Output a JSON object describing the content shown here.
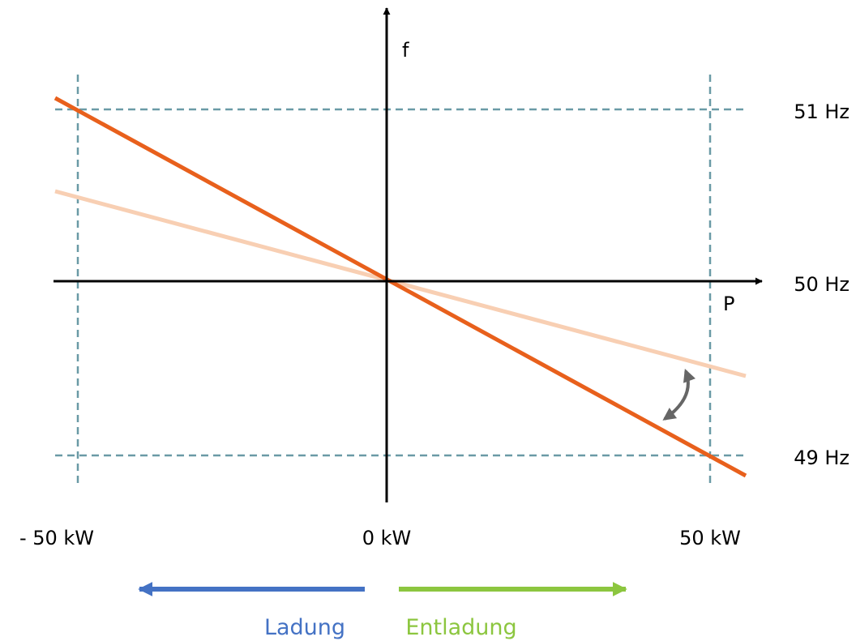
{
  "axes": {
    "x_label": "P",
    "y_label": "f"
  },
  "frequency_labels": {
    "upper": "51 Hz",
    "nominal": "50 Hz",
    "lower": "49 Hz"
  },
  "power_labels": {
    "left": "- 50 kW",
    "center": "0 kW",
    "right": "50 kW"
  },
  "direction_labels": {
    "charge": "Ladung",
    "discharge": "Entladung"
  },
  "colors": {
    "axis": "#000000",
    "gridline": "#6a9aa6",
    "steep_droop": "#e8601c",
    "flat_droop": "#f8cfb3",
    "adjust_arrow": "#666666",
    "charge": "#4472c4",
    "discharge": "#8cc63f"
  }
}
